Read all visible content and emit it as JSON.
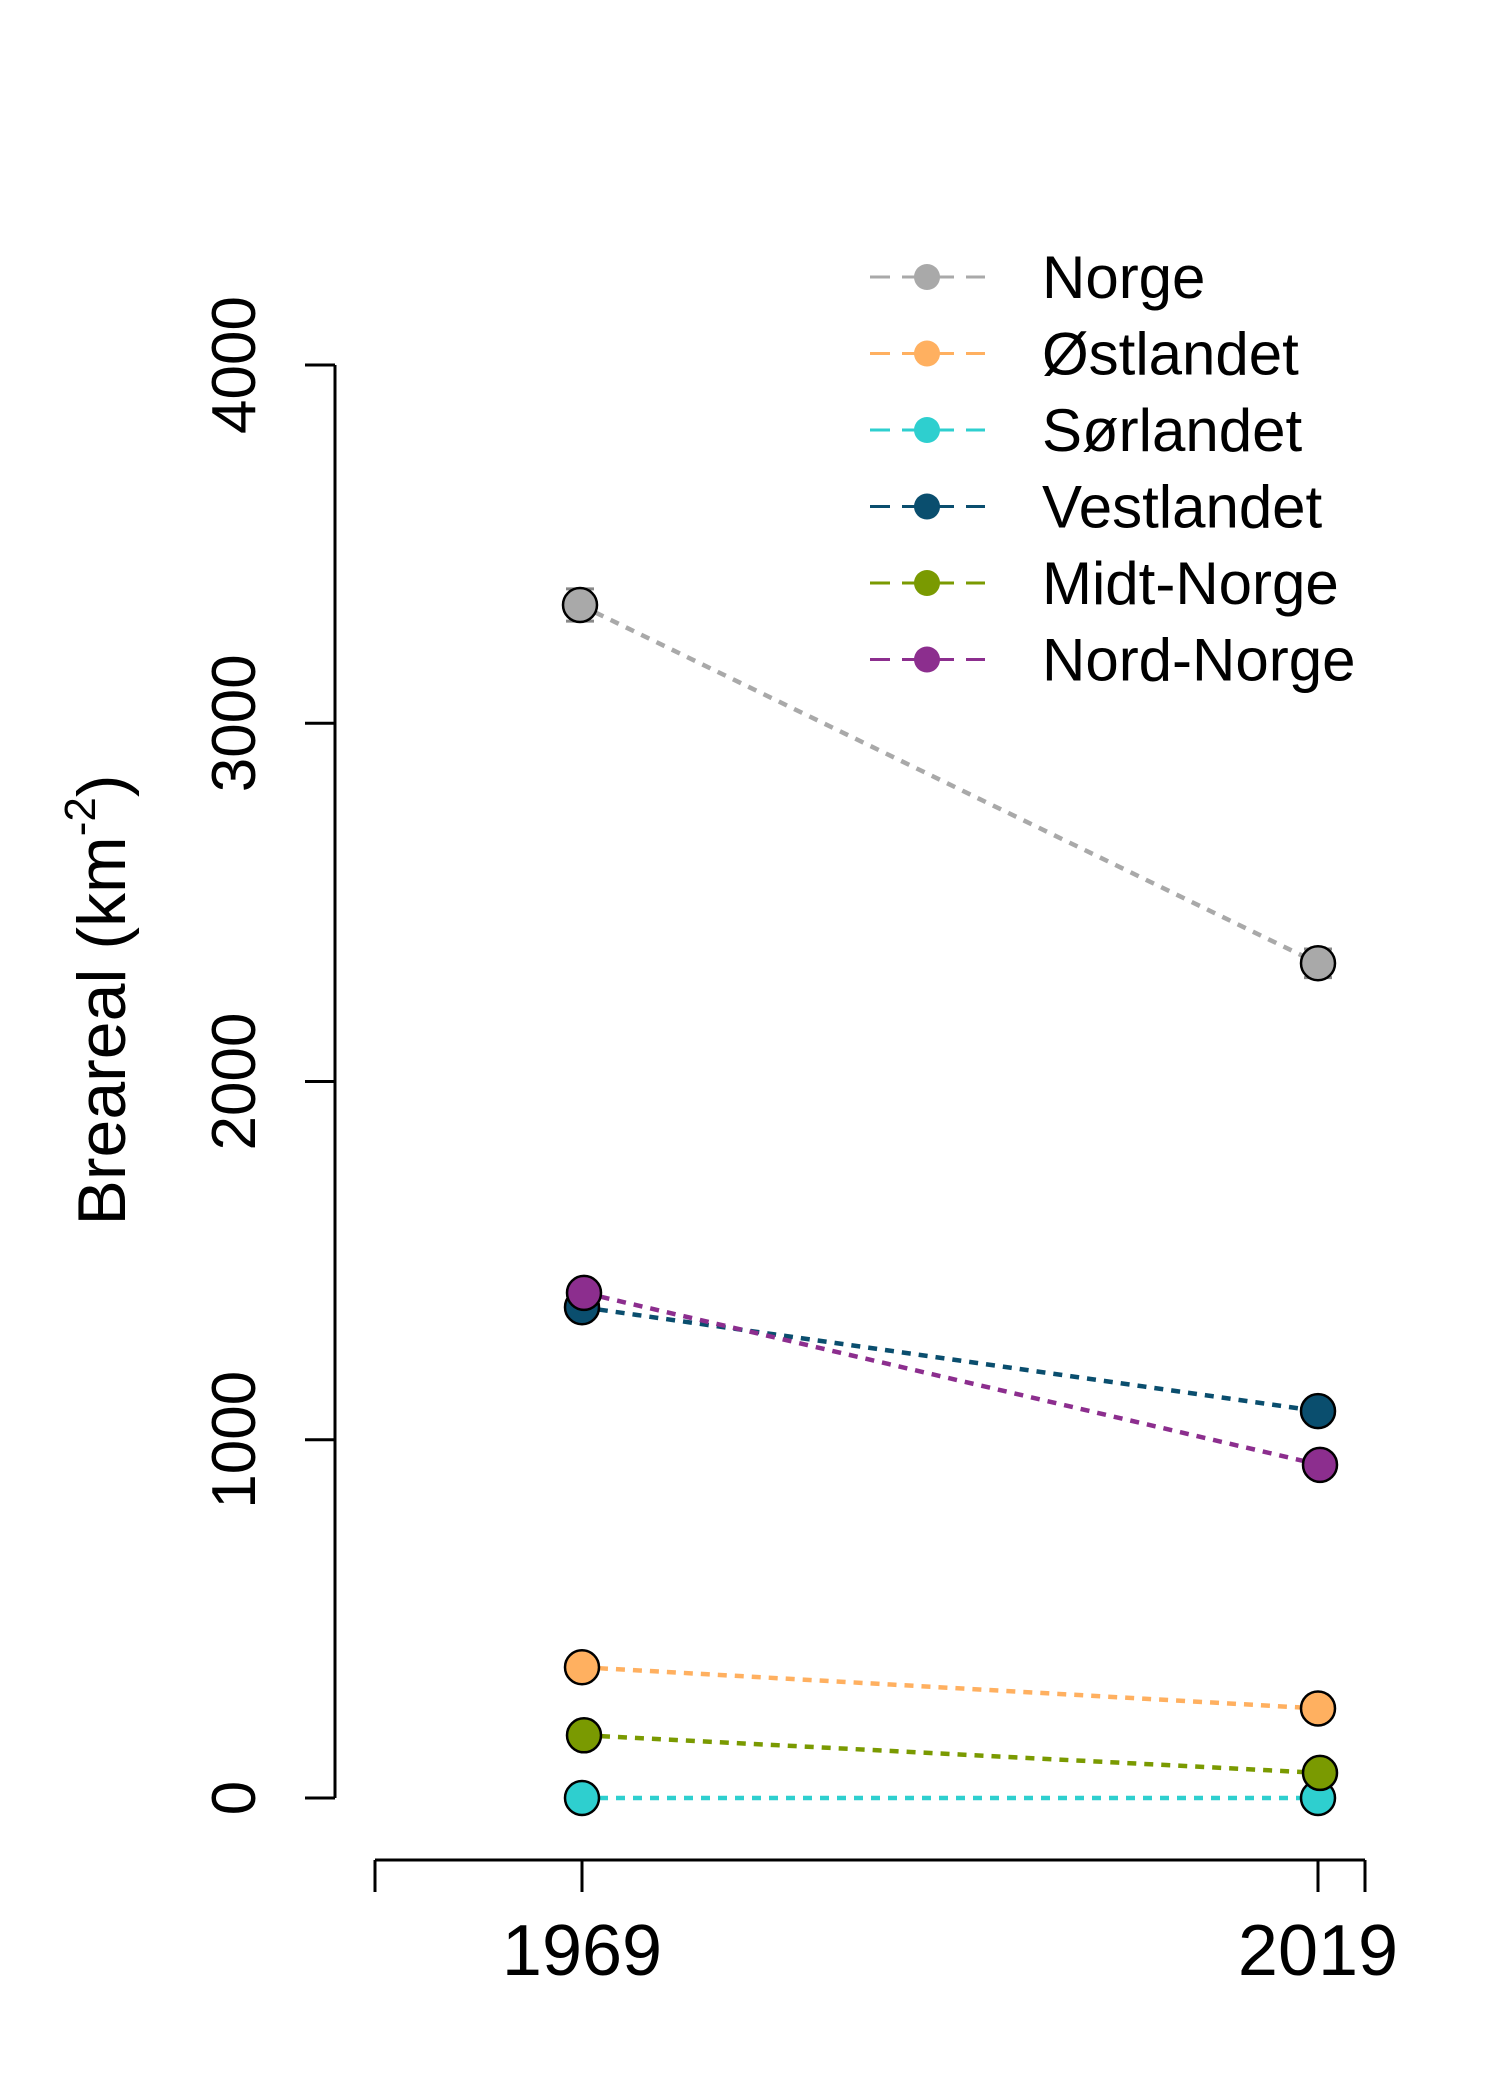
{
  "chart_data": {
    "type": "line",
    "title": "",
    "xlabel": "",
    "ylabel": "Breareal (km",
    "ylabel_superscript": "-2",
    "ylabel_close": ")",
    "x_categories": [
      "1969",
      "2019"
    ],
    "y_ticks": [
      "0",
      "1000",
      "2000",
      "3000",
      "4000"
    ],
    "ylim": [
      0,
      4000
    ],
    "grid": false,
    "legend_position": "top-right",
    "series": [
      {
        "name": "Norge",
        "color": "#a9a9a9",
        "values": [
          3330,
          2330
        ],
        "error": [
          45,
          40
        ]
      },
      {
        "name": "Østlandet",
        "color": "#ffb060",
        "values": [
          365,
          250
        ],
        "error": [
          0,
          0
        ]
      },
      {
        "name": "Sørlandet",
        "color": "#2ecfcf",
        "values": [
          0,
          0
        ],
        "error": [
          0,
          0
        ]
      },
      {
        "name": "Vestlandet",
        "color": "#0a4e6e",
        "values": [
          1370,
          1080
        ],
        "error": [
          25,
          15
        ]
      },
      {
        "name": "Midt-Norge",
        "color": "#7a9a01",
        "values": [
          175,
          70
        ],
        "error": [
          0,
          0
        ]
      },
      {
        "name": "Nord-Norge",
        "color": "#8c2e8e",
        "values": [
          1410,
          930
        ],
        "error": [
          0,
          0
        ]
      }
    ]
  }
}
